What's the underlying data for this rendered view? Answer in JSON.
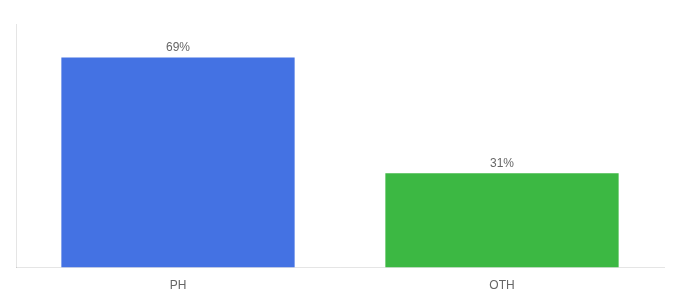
{
  "chart_data": {
    "type": "bar",
    "categories": [
      "PH",
      "OTH"
    ],
    "values": [
      69,
      31
    ],
    "value_labels": [
      "69%",
      "31%"
    ],
    "colors": [
      "#4472e3",
      "#3cb843"
    ],
    "ylim": [
      0,
      80
    ],
    "grid": false,
    "data_labels": true,
    "tick_labels": "x"
  }
}
